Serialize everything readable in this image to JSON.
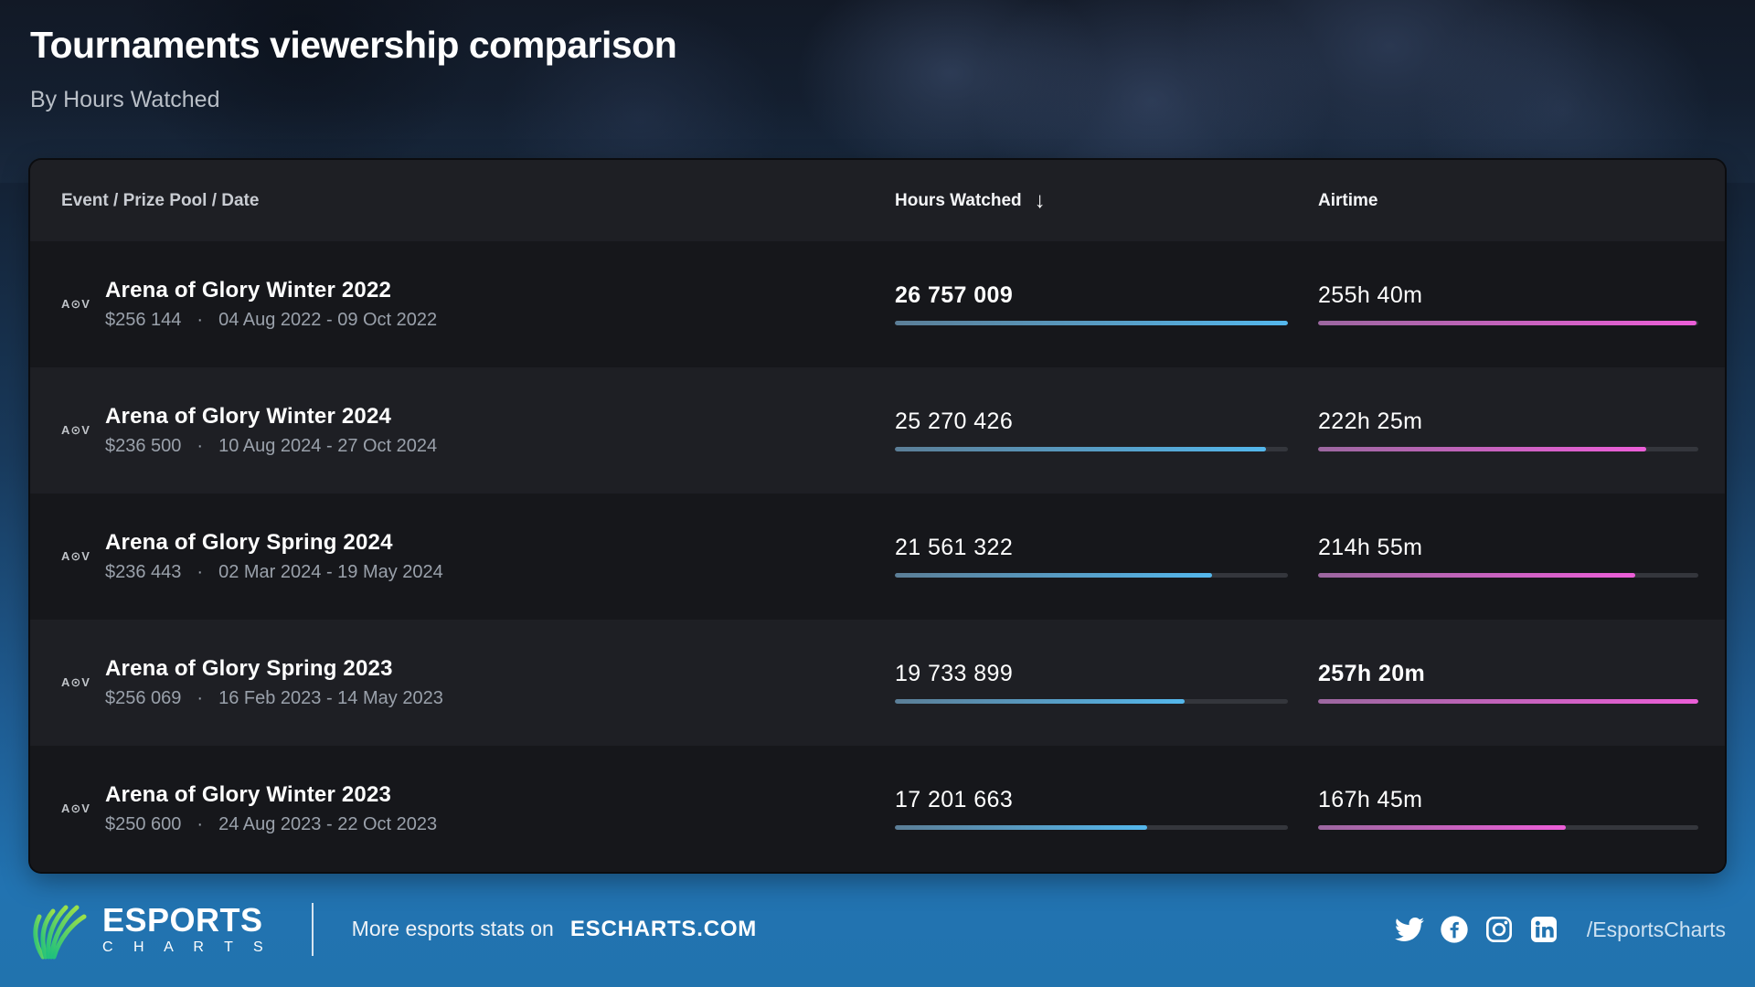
{
  "page": {
    "title": "Tournaments viewership comparison",
    "subtitle": "By Hours Watched"
  },
  "table": {
    "columns": {
      "event": "Event / Prize Pool / Date",
      "hours": "Hours Watched",
      "airtime": "Airtime"
    },
    "sort_arrow": "↓",
    "separator": "·",
    "rows": [
      {
        "icon": "A⊙V",
        "name": "Arena of Glory Winter 2022",
        "prize": "$256 144",
        "dates": "04 Aug 2022 - 09 Oct 2022",
        "hours": "26 757 009",
        "hours_pct": 100,
        "hours_bold": true,
        "airtime": "255h 40m",
        "airtime_pct": 99.4,
        "airtime_bold": false
      },
      {
        "icon": "A⊙V",
        "name": "Arena of Glory Winter 2024",
        "prize": "$236 500",
        "dates": "10 Aug 2024 - 27 Oct 2024",
        "hours": "25 270 426",
        "hours_pct": 94.4,
        "hours_bold": false,
        "airtime": "222h 25m",
        "airtime_pct": 86.4,
        "airtime_bold": false
      },
      {
        "icon": "A⊙V",
        "name": "Arena of Glory Spring 2024",
        "prize": "$236 443",
        "dates": "02 Mar 2024 - 19 May 2024",
        "hours": "21 561 322",
        "hours_pct": 80.6,
        "hours_bold": false,
        "airtime": "214h 55m",
        "airtime_pct": 83.5,
        "airtime_bold": false
      },
      {
        "icon": "A⊙V",
        "name": "Arena of Glory Spring 2023",
        "prize": "$256 069",
        "dates": "16 Feb 2023 - 14 May 2023",
        "hours": "19 733 899",
        "hours_pct": 73.7,
        "hours_bold": false,
        "airtime": "257h 20m",
        "airtime_pct": 100,
        "airtime_bold": true
      },
      {
        "icon": "A⊙V",
        "name": "Arena of Glory Winter 2023",
        "prize": "$250 600",
        "dates": "24 Aug 2023 - 22 Oct 2023",
        "hours": "17 201 663",
        "hours_pct": 64.3,
        "hours_bold": false,
        "airtime": "167h 45m",
        "airtime_pct": 65.2,
        "airtime_bold": false
      }
    ]
  },
  "chart_data": {
    "type": "table",
    "title": "Tournaments viewership comparison",
    "subtitle": "By Hours Watched",
    "columns": [
      "Event / Prize Pool / Date",
      "Hours Watched",
      "Airtime"
    ],
    "sorted_by": "Hours Watched descending",
    "categories": [
      "Arena of Glory Winter 2022",
      "Arena of Glory Winter 2024",
      "Arena of Glory Spring 2024",
      "Arena of Glory Spring 2023",
      "Arena of Glory Winter 2023"
    ],
    "series": [
      {
        "name": "Hours Watched",
        "values": [
          26757009,
          25270426,
          21561322,
          19733899,
          17201663
        ],
        "bar_color": "#54b7ec"
      },
      {
        "name": "Airtime (hours:minutes)",
        "values": [
          "255h 40m",
          "222h 25m",
          "214h 55m",
          "257h 20m",
          "167h 45m"
        ],
        "bar_color": "#ec5ed8"
      },
      {
        "name": "Prize Pool",
        "values": [
          "$256 144",
          "$236 500",
          "$236 443",
          "$256 069",
          "$250 600"
        ]
      },
      {
        "name": "Dates",
        "values": [
          "04 Aug 2022 - 09 Oct 2022",
          "10 Aug 2024 - 27 Oct 2024",
          "02 Mar 2024 - 19 May 2024",
          "16 Feb 2023 - 14 May 2023",
          "24 Aug 2023 - 22 Oct 2023"
        ]
      }
    ]
  },
  "footer": {
    "brand_top": "ESPORTS",
    "brand_bottom": "C H A R T S",
    "message": "More esports stats on",
    "site": "ESCHARTS.COM",
    "handle": "/EsportsCharts",
    "social_icons": [
      "twitter-icon",
      "facebook-icon",
      "instagram-icon",
      "linkedin-icon"
    ]
  },
  "colors": {
    "accent_blue": "#54b7ec",
    "accent_pink": "#ec5ed8",
    "row_dark": "#16171b",
    "row_light": "#1e1f24",
    "footer_blue": "#2173b0",
    "logo_green_start": "#21c17c",
    "logo_green_end": "#9be04a"
  }
}
